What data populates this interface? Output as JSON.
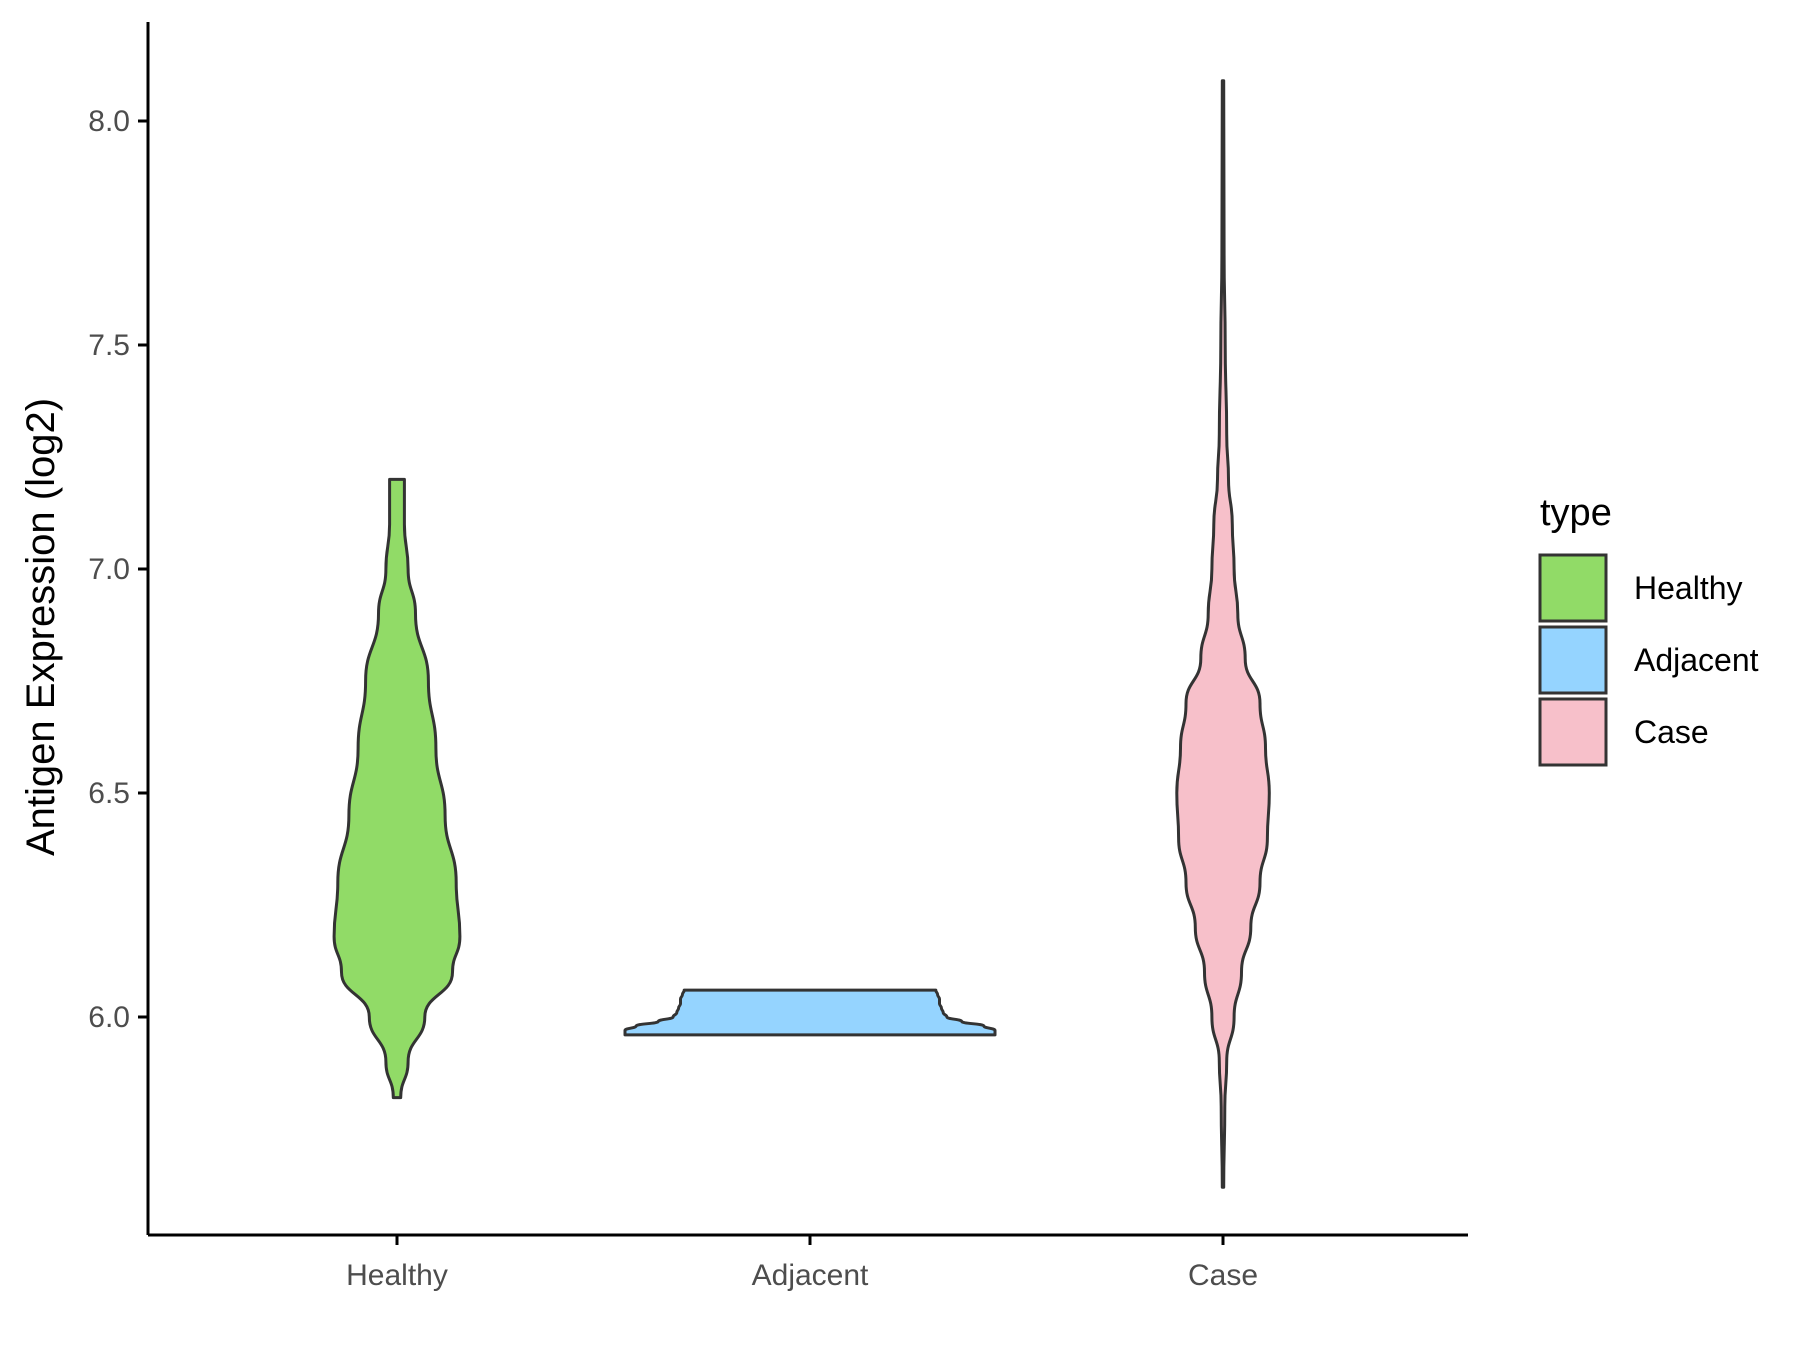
{
  "chart_data": {
    "type": "violin",
    "ylabel": "Antigen Expression (log2)",
    "xlabel": "",
    "ylim": [
      5.52,
      8.22
    ],
    "y_ticks": [
      "6.0",
      "6.5",
      "7.0",
      "7.5",
      "8.0"
    ],
    "categories": [
      "Healthy",
      "Adjacent",
      "Case"
    ],
    "grid": false,
    "legend": {
      "title": "type",
      "placement": "right",
      "entries": [
        "Healthy",
        "Adjacent",
        "Case"
      ]
    },
    "series": [
      {
        "name": "Healthy",
        "color": "#91DB67",
        "min": 5.82,
        "max": 7.2,
        "profile": [
          [
            5.82,
            0.02
          ],
          [
            5.9,
            0.06
          ],
          [
            6.0,
            0.15
          ],
          [
            6.1,
            0.3
          ],
          [
            6.18,
            0.34
          ],
          [
            6.3,
            0.32
          ],
          [
            6.45,
            0.26
          ],
          [
            6.6,
            0.21
          ],
          [
            6.75,
            0.17
          ],
          [
            6.9,
            0.1
          ],
          [
            7.0,
            0.06
          ],
          [
            7.1,
            0.04
          ],
          [
            7.2,
            0.04
          ]
        ]
      },
      {
        "name": "Adjacent",
        "color": "#95D4FF",
        "min": 5.96,
        "max": 6.06,
        "profile": [
          [
            5.96,
            1.0
          ],
          [
            5.97,
            1.0
          ],
          [
            5.98,
            0.94
          ],
          [
            5.99,
            0.82
          ],
          [
            6.0,
            0.74
          ],
          [
            6.01,
            0.72
          ],
          [
            6.02,
            0.71
          ],
          [
            6.03,
            0.7
          ],
          [
            6.04,
            0.7
          ],
          [
            6.05,
            0.69
          ],
          [
            6.06,
            0.68
          ]
        ]
      },
      {
        "name": "Case",
        "color": "#F7C0CA",
        "min": 5.62,
        "max": 8.09,
        "profile": [
          [
            5.62,
            0.004
          ],
          [
            5.8,
            0.01
          ],
          [
            5.9,
            0.02
          ],
          [
            6.0,
            0.06
          ],
          [
            6.1,
            0.1
          ],
          [
            6.2,
            0.15
          ],
          [
            6.3,
            0.2
          ],
          [
            6.4,
            0.24
          ],
          [
            6.5,
            0.25
          ],
          [
            6.6,
            0.23
          ],
          [
            6.7,
            0.2
          ],
          [
            6.8,
            0.12
          ],
          [
            6.9,
            0.08
          ],
          [
            7.0,
            0.06
          ],
          [
            7.1,
            0.05
          ],
          [
            7.2,
            0.03
          ],
          [
            7.3,
            0.02
          ],
          [
            7.5,
            0.012
          ],
          [
            7.7,
            0.006
          ],
          [
            8.09,
            0.004
          ]
        ]
      }
    ]
  }
}
